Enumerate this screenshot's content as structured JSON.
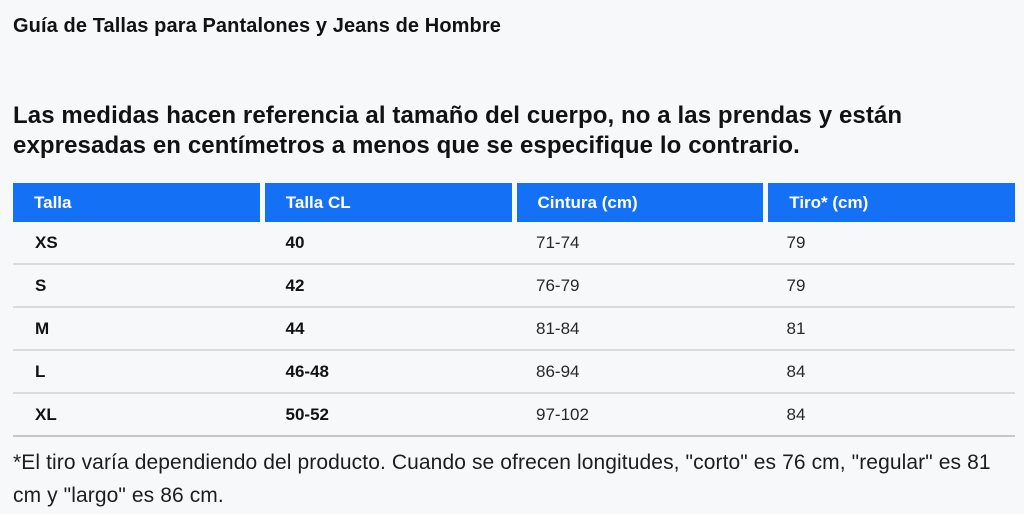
{
  "page": {
    "title": "Guía de Tallas para Pantalones y Jeans de Hombre",
    "intro": "Las medidas hacen referencia al tamaño del cuerpo, no a las prendas y están expresadas en centímetros a menos que se especifique lo contrario.",
    "footnote": "*El tiro varía dependiendo del producto. Cuando se ofrecen longitudes, \"corto\" es 76 cm, \"regular\" es 81 cm y \"largo\" es 86 cm."
  },
  "colors": {
    "header_background": "#1470f5",
    "header_text": "#ffffff",
    "body_text": "#26282b",
    "emphasis_text": "#101214",
    "row_divider": "#d9dbde",
    "page_background": "#f7f8fa"
  },
  "size_table": {
    "columns": [
      "Talla",
      "Talla CL",
      "Cintura (cm)",
      "Tiro* (cm)"
    ],
    "bold_columns": [
      0,
      1
    ],
    "rows": [
      [
        "XS",
        "40",
        "71-74",
        "79"
      ],
      [
        "S",
        "42",
        "76-79",
        "79"
      ],
      [
        "M",
        "44",
        "81-84",
        "81"
      ],
      [
        "L",
        "46-48",
        "86-94",
        "84"
      ],
      [
        "XL",
        "50-52",
        "97-102",
        "84"
      ]
    ]
  }
}
